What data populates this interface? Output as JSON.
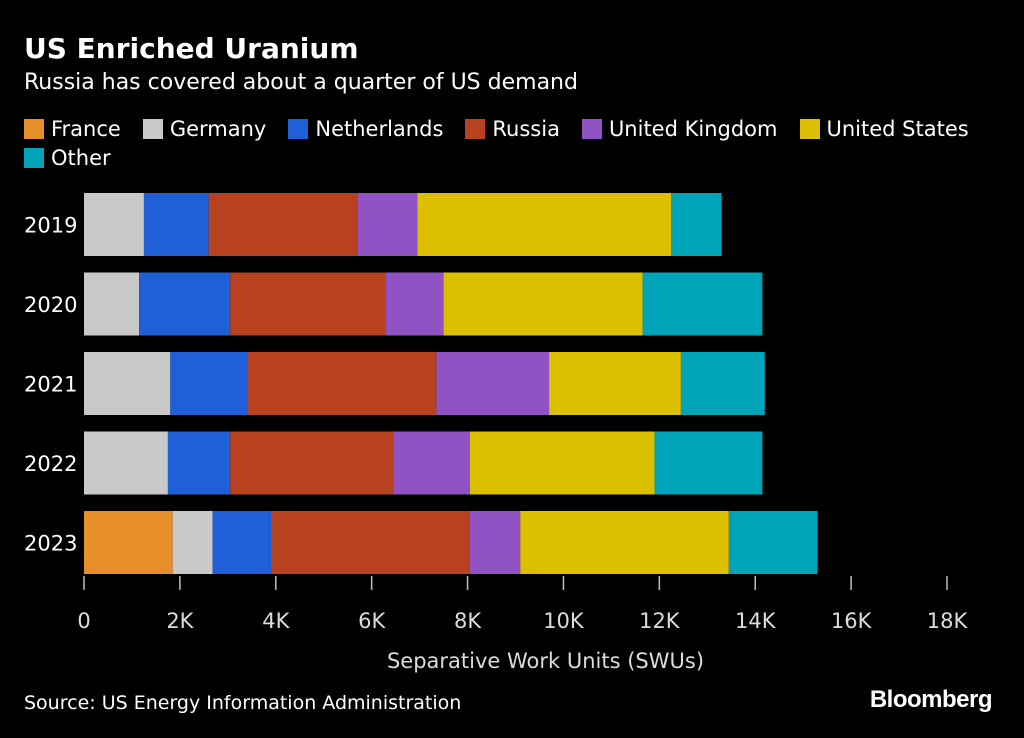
{
  "title": "US Enriched Uranium",
  "subtitle": "Russia has covered about a quarter of US demand",
  "source": "Source: US Energy Information Administration",
  "brand": "Bloomberg",
  "chart_data": {
    "type": "bar",
    "orientation": "horizontal",
    "stacked": true,
    "title": "US Enriched Uranium",
    "subtitle": "Russia has covered about a quarter of US demand",
    "xlabel": "Separative Work Units (SWUs)",
    "ylabel": "",
    "xlim": [
      0,
      18000
    ],
    "xticks": [
      0,
      2000,
      4000,
      6000,
      8000,
      10000,
      12000,
      14000,
      16000,
      18000
    ],
    "xtick_labels": [
      "0",
      "2K",
      "4K",
      "6K",
      "8K",
      "10K",
      "12K",
      "14K",
      "16K",
      "18K"
    ],
    "grid": false,
    "legend_position": "top-left",
    "categories": [
      "2019",
      "2020",
      "2021",
      "2022",
      "2023"
    ],
    "series": [
      {
        "name": "France",
        "color": "#e58e2a",
        "values": [
          0,
          0,
          0,
          0,
          1850
        ]
      },
      {
        "name": "Germany",
        "color": "#c8c8c8",
        "values": [
          1250,
          1150,
          1800,
          1750,
          830
        ]
      },
      {
        "name": "Netherlands",
        "color": "#1f5fd8",
        "values": [
          1350,
          1900,
          1600,
          1300,
          1220
        ]
      },
      {
        "name": "Russia",
        "color": "#b8411f",
        "values": [
          3100,
          3250,
          3950,
          3400,
          4150
        ]
      },
      {
        "name": "United Kingdom",
        "color": "#9153c4",
        "values": [
          1250,
          1200,
          2350,
          1600,
          1050
        ]
      },
      {
        "name": "United States",
        "color": "#dcc000",
        "values": [
          5300,
          4150,
          2750,
          3850,
          4350
        ]
      },
      {
        "name": "Other",
        "color": "#00a4b8",
        "values": [
          1050,
          2500,
          1750,
          2250,
          1850
        ]
      }
    ]
  }
}
